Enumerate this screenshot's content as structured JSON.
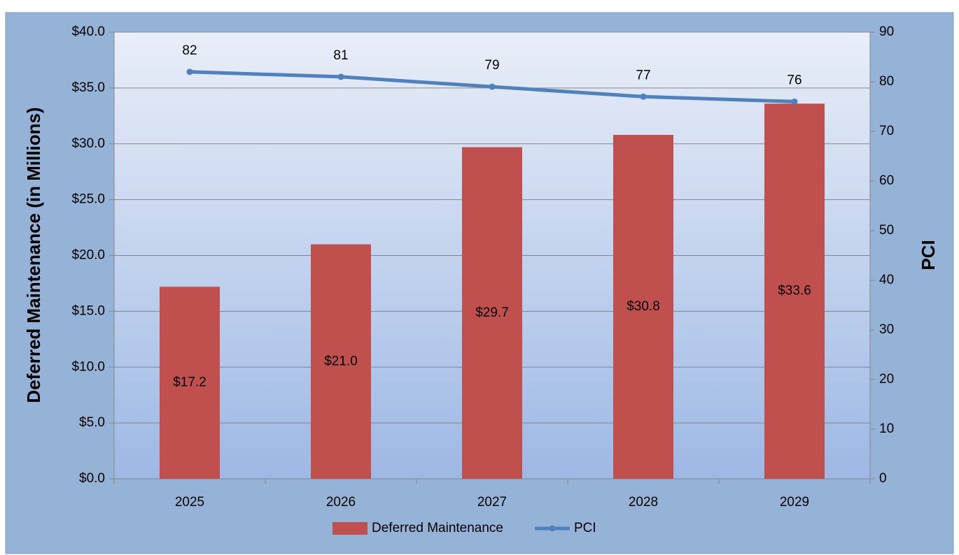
{
  "chart_data": {
    "type": "combo",
    "categories": [
      "2025",
      "2026",
      "2027",
      "2028",
      "2029"
    ],
    "series": [
      {
        "name": "Deferred Maintenance",
        "type": "bar",
        "axis": "y",
        "color": "#c0504d",
        "values": [
          17.2,
          21.0,
          29.7,
          30.8,
          33.6
        ],
        "value_labels": [
          "$17.2",
          "$21.0",
          "$29.7",
          "$30.8",
          "$33.6"
        ]
      },
      {
        "name": "PCI",
        "type": "line",
        "axis": "y2",
        "color": "#4f81bd",
        "values": [
          82,
          81,
          79,
          77,
          76
        ]
      }
    ],
    "ylabel": "Deferred Maintenance (in Millions)",
    "y2label": "PCI",
    "ylim": [
      0,
      40
    ],
    "yticks": [
      {
        "value": 0,
        "label": "$0.0"
      },
      {
        "value": 5,
        "label": "$5.0"
      },
      {
        "value": 10,
        "label": "$10.0"
      },
      {
        "value": 15,
        "label": "$15.0"
      },
      {
        "value": 20,
        "label": "$20.0"
      },
      {
        "value": 25,
        "label": "$25.0"
      },
      {
        "value": 30,
        "label": "$30.0"
      },
      {
        "value": 35,
        "label": "$35.0"
      },
      {
        "value": 40,
        "label": "$40.0"
      }
    ],
    "y2lim": [
      0,
      90
    ],
    "y2ticks": [
      0,
      10,
      20,
      30,
      40,
      50,
      60,
      70,
      80,
      90
    ],
    "grid": true,
    "legend": "bottom"
  }
}
